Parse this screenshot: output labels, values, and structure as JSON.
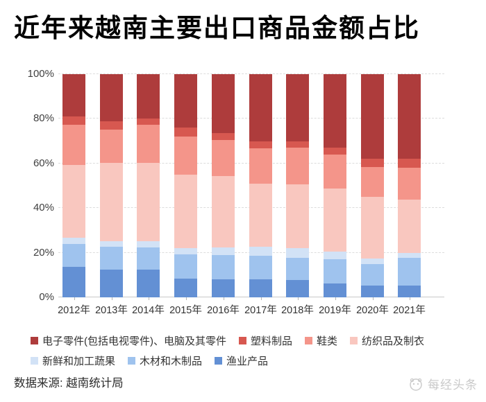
{
  "title": "近年来越南主要出口商品金额占比",
  "source": "数据来源: 越南统计局",
  "watermark": "每经头条",
  "chart_data": {
    "type": "bar",
    "stacked": true,
    "percent_stacked": true,
    "title": "近年来越南主要出口商品金额占比",
    "categories": [
      "2012年",
      "2013年",
      "2014年",
      "2015年",
      "2016年",
      "2017年",
      "2018年",
      "2019年",
      "2020年",
      "2021年"
    ],
    "series": [
      {
        "name": "电子零件(包括电视零件)、电脑及其零件",
        "color": "#ae3c3c",
        "values": [
          19.0,
          21.0,
          20.0,
          24.0,
          26.5,
          30.0,
          30.0,
          33.0,
          38.0,
          38.0
        ]
      },
      {
        "name": "塑料制品",
        "color": "#d75850",
        "values": [
          3.7,
          3.7,
          2.8,
          4.0,
          3.1,
          3.1,
          2.8,
          3.1,
          3.7,
          4.0
        ]
      },
      {
        "name": "鞋类",
        "color": "#f4958a",
        "values": [
          18.0,
          15.2,
          17.0,
          17.0,
          16.0,
          16.0,
          16.5,
          15.2,
          13.4,
          14.3
        ]
      },
      {
        "name": "纺织品及制衣",
        "color": "#f9c7bf",
        "values": [
          32.6,
          35.0,
          35.0,
          33.0,
          32.0,
          28.3,
          28.6,
          28.3,
          27.5,
          23.9
        ]
      },
      {
        "name": "新鲜和加工蔬果",
        "color": "#d2e2f6",
        "values": [
          2.8,
          2.5,
          2.8,
          2.8,
          3.4,
          4.0,
          4.3,
          3.4,
          2.5,
          2.2
        ]
      },
      {
        "name": "木材和木制品",
        "color": "#9fc3ee",
        "values": [
          10.2,
          10.2,
          9.9,
          10.9,
          10.9,
          10.6,
          9.9,
          10.9,
          9.6,
          12.4
        ]
      },
      {
        "name": "渔业产品",
        "color": "#6390d4",
        "values": [
          13.7,
          12.4,
          12.4,
          8.4,
          8.1,
          8.0,
          7.8,
          6.2,
          5.3,
          5.3
        ]
      }
    ],
    "y_ticks": [
      "0%",
      "20%",
      "40%",
      "60%",
      "80%",
      "100%"
    ],
    "ylim": [
      0,
      100
    ],
    "xlabel": "",
    "ylabel": "",
    "grid": "horizontal-dashed",
    "legend_position": "bottom"
  }
}
